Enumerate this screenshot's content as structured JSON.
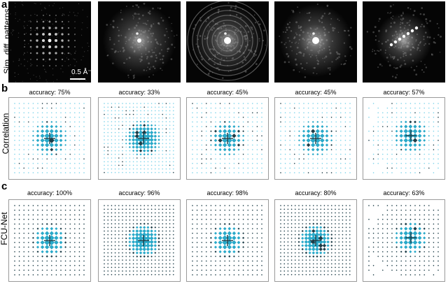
{
  "panels": {
    "a": {
      "letter": "a",
      "row_label": "Sim. diff. patterns",
      "scalebar_label": "0.5 Å⁻¹"
    },
    "b": {
      "letter": "b",
      "row_label": "Correlation",
      "accuracies": [
        "accuracy: 75%",
        "accuracy: 33%",
        "accuracy: 45%",
        "accuracy: 45%",
        "accuracy: 57%"
      ]
    },
    "c": {
      "letter": "c",
      "row_label": "FCU-Net",
      "accuracies": [
        "accuracy: 100%",
        "accuracy: 96%",
        "accuracy: 98%",
        "accuracy: 80%",
        "accuracy: 63%"
      ]
    }
  },
  "colors": {
    "cyan": "#29a9c9",
    "dark": "#1d3d48",
    "light_cyan": "#7fd4ea",
    "frame": "#9a9a9a"
  }
}
